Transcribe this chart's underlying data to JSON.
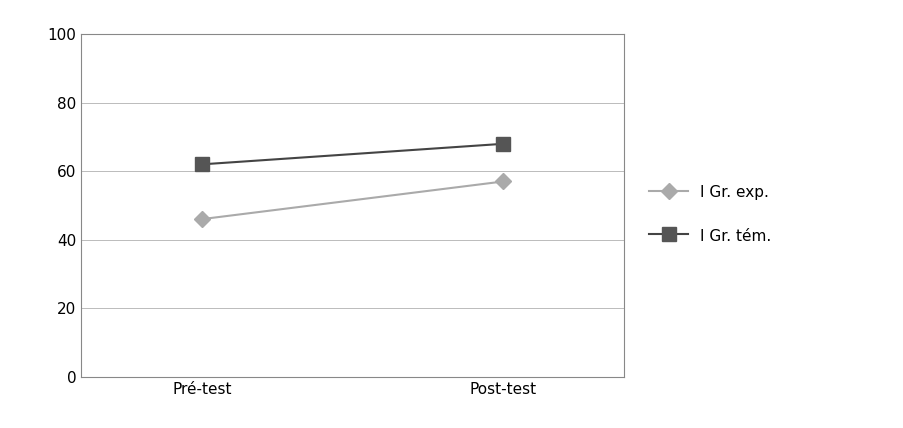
{
  "x_labels": [
    "Pré-test",
    "Post-test"
  ],
  "series": [
    {
      "label": "I Gr. exp.",
      "values": [
        46,
        57
      ],
      "color": "#aaaaaa",
      "marker": "D",
      "marker_color": "#aaaaaa",
      "linewidth": 1.5,
      "markersize": 8
    },
    {
      "label": "I Gr. tém.",
      "values": [
        62,
        68
      ],
      "color": "#444444",
      "marker": "s",
      "marker_color": "#555555",
      "linewidth": 1.5,
      "markersize": 10
    }
  ],
  "ylim": [
    0,
    100
  ],
  "yticks": [
    0,
    20,
    40,
    60,
    80,
    100
  ],
  "grid_color": "#bbbbbb",
  "background_color": "#ffffff",
  "plot_bg_color": "#ffffff",
  "tick_fontsize": 11,
  "label_fontsize": 11,
  "legend_fontsize": 11
}
